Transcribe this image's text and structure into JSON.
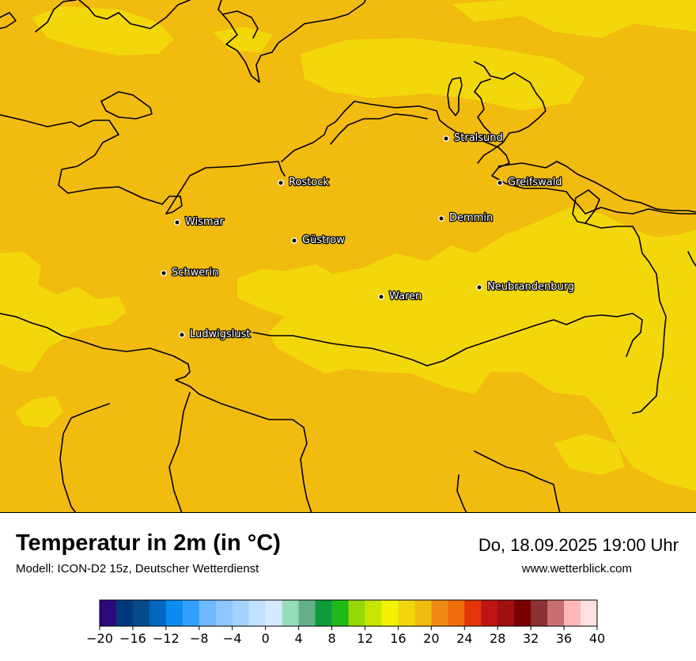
{
  "header": {
    "title": "Temperatur in 2m (in °C)",
    "model": "Modell: ICON-D2 15z, Deutscher Wetterdienst",
    "datetime": "Do, 18.09.2025 19:00 Uhr",
    "website": "www.wetterblick.com"
  },
  "map": {
    "field_colors": {
      "base": "#f2bb0f",
      "warmer_zone": "#f2d80a"
    },
    "cities": [
      {
        "name": "Stralsund"
      },
      {
        "name": "Rostock"
      },
      {
        "name": "Greifswald"
      },
      {
        "name": "Wismar"
      },
      {
        "name": "Demmin"
      },
      {
        "name": "Güstrow"
      },
      {
        "name": "Schwerin"
      },
      {
        "name": "Neubrandenburg"
      },
      {
        "name": "Waren"
      },
      {
        "name": "Ludwigslust"
      }
    ]
  },
  "colorbar": {
    "unit": "°C",
    "min": -20,
    "max": 40,
    "step": 2,
    "tick_labels": [
      "−20",
      "−16",
      "−12",
      "−8",
      "−4",
      "0",
      "4",
      "8",
      "12",
      "16",
      "20",
      "24",
      "28",
      "32",
      "36",
      "40"
    ],
    "colors": [
      "#2d0a7c",
      "#003a7c",
      "#064a8c",
      "#0066bf",
      "#0a8cf0",
      "#33a0ff",
      "#6fb7ff",
      "#8ec6ff",
      "#a6d2ff",
      "#c2e0ff",
      "#d6eaff",
      "#98dcc0",
      "#64b08a",
      "#0f9b3a",
      "#1fba1a",
      "#96d80a",
      "#c8e600",
      "#f2f200",
      "#f2d80a",
      "#f2bb0f",
      "#f08a14",
      "#f06e0a",
      "#e6340a",
      "#bf1414",
      "#a00f0f",
      "#7a0000",
      "#8c3232",
      "#c87070",
      "#ffb8b8",
      "#ffe0e0"
    ]
  }
}
